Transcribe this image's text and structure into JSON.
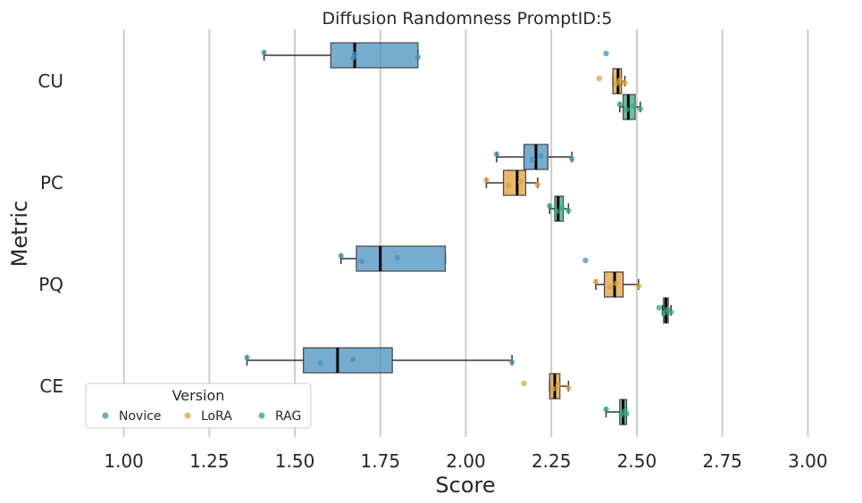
{
  "chart_data": {
    "type": "boxplot",
    "title": "Diffusion Randomness PromptID:5",
    "xlabel": "Score",
    "ylabel": "Metric",
    "xlim": [
      0.92,
      3.08
    ],
    "xticks": [
      "1.00",
      "1.25",
      "1.50",
      "1.75",
      "2.00",
      "2.25",
      "2.50",
      "2.75",
      "3.00"
    ],
    "grid": "vertical",
    "categories": [
      "CU",
      "PC",
      "PQ",
      "CE"
    ],
    "legend": {
      "title": "Version",
      "placement": "lower-left",
      "entries": [
        "Novice",
        "LoRA",
        "RAG"
      ]
    },
    "colors": {
      "Novice": "#4a90bf",
      "LoRA": "#e0a23d",
      "RAG": "#3aaa80"
    },
    "series": [
      {
        "name": "Novice",
        "boxes": [
          {
            "category": "CU",
            "whislo": 1.41,
            "q1": 1.605,
            "med": 1.675,
            "q3": 1.86,
            "whishi": 1.86,
            "points": [
              1.41,
              1.67,
              1.675,
              1.86,
              2.41
            ]
          },
          {
            "category": "PC",
            "whislo": 2.09,
            "q1": 2.17,
            "med": 2.205,
            "q3": 2.24,
            "whishi": 2.31,
            "points": [
              2.09,
              2.195,
              2.22,
              2.31
            ]
          },
          {
            "category": "PQ",
            "whislo": 1.635,
            "q1": 1.68,
            "med": 1.75,
            "q3": 1.94,
            "whishi": 1.94,
            "points": [
              1.635,
              1.695,
              1.8,
              2.35
            ]
          },
          {
            "category": "CE",
            "whislo": 1.36,
            "q1": 1.525,
            "med": 1.625,
            "q3": 1.785,
            "whishi": 2.135,
            "points": [
              1.36,
              1.575,
              1.67,
              2.135
            ]
          }
        ]
      },
      {
        "name": "LoRA",
        "boxes": [
          {
            "category": "CU",
            "whislo": 2.43,
            "q1": 2.43,
            "med": 2.445,
            "q3": 2.455,
            "whishi": 2.465,
            "points": [
              2.39,
              2.44,
              2.45,
              2.465
            ]
          },
          {
            "category": "PC",
            "whislo": 2.06,
            "q1": 2.11,
            "med": 2.15,
            "q3": 2.175,
            "whishi": 2.21,
            "points": [
              2.06,
              2.125,
              2.16,
              2.21
            ]
          },
          {
            "category": "PQ",
            "whislo": 2.38,
            "q1": 2.405,
            "med": 2.435,
            "q3": 2.46,
            "whishi": 2.505,
            "points": [
              2.38,
              2.42,
              2.44,
              2.505
            ]
          },
          {
            "category": "CE",
            "whislo": 2.245,
            "q1": 2.245,
            "med": 2.26,
            "q3": 2.275,
            "whishi": 2.3,
            "points": [
              2.17,
              2.255,
              2.27,
              2.3
            ]
          }
        ]
      },
      {
        "name": "RAG",
        "boxes": [
          {
            "category": "CU",
            "whislo": 2.45,
            "q1": 2.46,
            "med": 2.475,
            "q3": 2.495,
            "whishi": 2.51,
            "points": [
              2.45,
              2.47,
              2.49,
              2.51
            ]
          },
          {
            "category": "PC",
            "whislo": 2.245,
            "q1": 2.26,
            "med": 2.27,
            "q3": 2.285,
            "whishi": 2.3,
            "points": [
              2.245,
              2.265,
              2.28,
              2.3
            ]
          },
          {
            "category": "PQ",
            "whislo": 2.575,
            "q1": 2.578,
            "med": 2.585,
            "q3": 2.592,
            "whishi": 2.6,
            "points": [
              2.565,
              2.58,
              2.59,
              2.6
            ]
          },
          {
            "category": "CE",
            "whislo": 2.41,
            "q1": 2.45,
            "med": 2.46,
            "q3": 2.47,
            "whishi": 2.47,
            "points": [
              2.41,
              2.455,
              2.465,
              2.47
            ]
          }
        ]
      }
    ]
  }
}
